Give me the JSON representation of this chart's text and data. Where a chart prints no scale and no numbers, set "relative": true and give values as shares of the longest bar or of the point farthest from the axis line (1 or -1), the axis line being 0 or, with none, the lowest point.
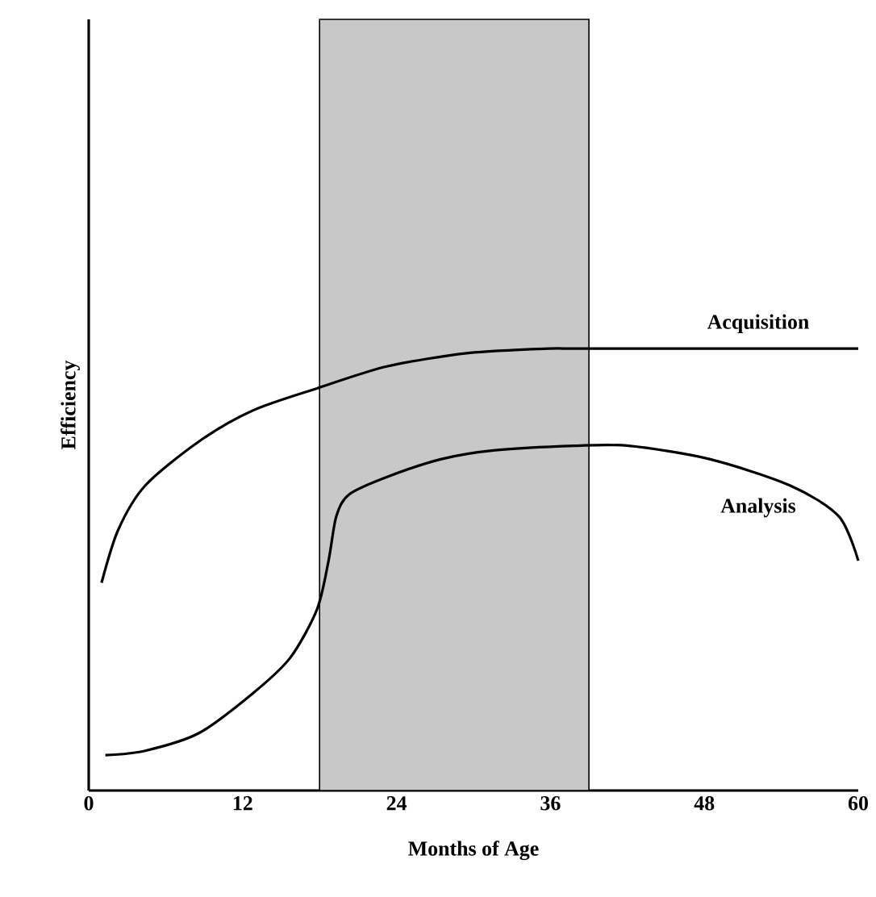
{
  "chart_data": {
    "type": "line",
    "xlabel": "Months of Age",
    "ylabel": "Efficiency",
    "relative": true,
    "xlim": [
      0,
      60
    ],
    "xticks": [
      0,
      12,
      24,
      36,
      48,
      60
    ],
    "marker": "none",
    "line_style": "solid",
    "bands": [
      {
        "axis": "x",
        "from": 18,
        "to": 39,
        "color": "#c8c8c8"
      }
    ],
    "series": [
      {
        "name": "Acquisition",
        "color": "#000000",
        "x": [
          1,
          2.3,
          4.4,
          8.6,
          12.8,
          17.8,
          23.3,
          29.6,
          35.8,
          39,
          60
        ],
        "values": [
          0.47,
          0.59,
          0.69,
          0.79,
          0.86,
          0.91,
          0.96,
          0.99,
          1,
          1,
          1
        ]
      },
      {
        "name": "Analysis",
        "color": "#000000",
        "x": [
          1.3,
          4.4,
          8.6,
          12.8,
          15.7,
          17.8,
          18.7,
          19.3,
          20.3,
          23.3,
          27.5,
          31.7,
          37.9,
          42.1,
          48.4,
          54.7,
          58.5,
          60
        ],
        "values": [
          0.08,
          0.09,
          0.13,
          0.22,
          0.3,
          0.41,
          0.52,
          0.62,
          0.67,
          0.71,
          0.75,
          0.77,
          0.78,
          0.78,
          0.75,
          0.69,
          0.62,
          0.52
        ]
      }
    ]
  }
}
